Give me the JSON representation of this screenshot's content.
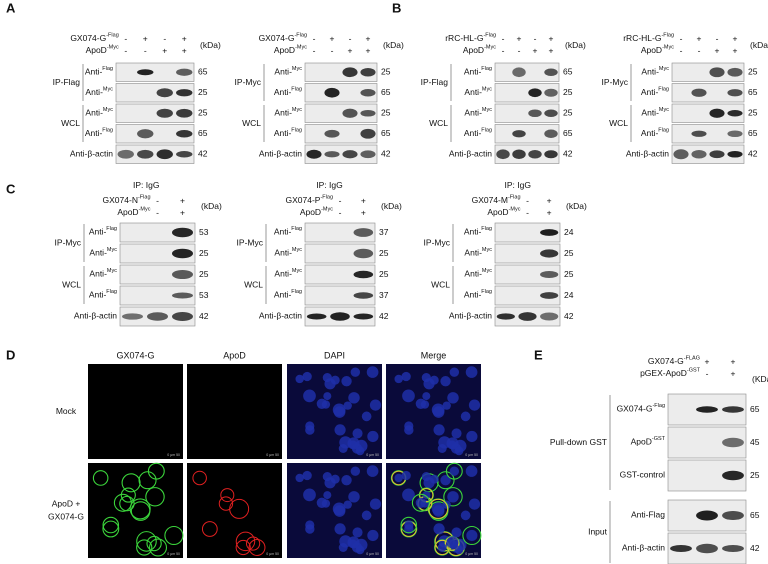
{
  "panels": [
    {
      "label": "A",
      "blots": [
        {
          "header": [
            {
              "name": "GX074-G",
              "sup": "-Flag",
              "signs": [
                "-",
                "+",
                "-",
                "+"
              ]
            },
            {
              "name": "ApoD",
              "sup": "-Myc",
              "signs": [
                "-",
                "-",
                "+",
                "+"
              ]
            }
          ],
          "unit": "(kDa)",
          "groups": [
            {
              "name": "IP-Flag",
              "rows": [
                {
                  "name": "Anti-",
                  "sup": "Flag",
                  "kda": 65
                },
                {
                  "name": "Anti-",
                  "sup": "Myc",
                  "kda": 25
                }
              ]
            },
            {
              "name": "WCL",
              "rows": [
                {
                  "name": "Anti-",
                  "sup": "Myc",
                  "kda": 25
                },
                {
                  "name": "Anti-",
                  "sup": "Flag",
                  "kda": 65
                }
              ]
            }
          ],
          "loading": {
            "name": "Anti-β-actin",
            "kda": 42
          }
        },
        {
          "header": [
            {
              "name": "GX074-G",
              "sup": "-Flag",
              "signs": [
                "-",
                "+",
                "-",
                "+"
              ]
            },
            {
              "name": "ApoD",
              "sup": "-Myc",
              "signs": [
                "-",
                "-",
                "+",
                "+"
              ]
            }
          ],
          "unit": "(kDa)",
          "groups": [
            {
              "name": "IP-Myc",
              "rows": [
                {
                  "name": "Anti-",
                  "sup": "Myc",
                  "kda": 25
                },
                {
                  "name": "Anti-",
                  "sup": "Flag",
                  "kda": 65
                }
              ]
            },
            {
              "name": "WCL",
              "rows": [
                {
                  "name": "Anti-",
                  "sup": "Myc",
                  "kda": 25
                },
                {
                  "name": "Anti-",
                  "sup": "Flag",
                  "kda": 65
                }
              ]
            }
          ],
          "loading": {
            "name": "Anti-β-actin",
            "kda": 42
          }
        }
      ]
    },
    {
      "label": "B",
      "blots": [
        {
          "header": [
            {
              "name": "rRC-HL-G",
              "sup": "-Flag",
              "signs": [
                "-",
                "+",
                "-",
                "+"
              ]
            },
            {
              "name": "ApoD",
              "sup": "-Myc",
              "signs": [
                "-",
                "-",
                "+",
                "+"
              ]
            }
          ],
          "unit": "(kDa)",
          "groups": [
            {
              "name": "IP-Flag",
              "rows": [
                {
                  "name": "Anti-",
                  "sup": "Flag",
                  "kda": 65
                },
                {
                  "name": "Anti-",
                  "sup": "Myc",
                  "kda": 25
                }
              ]
            },
            {
              "name": "WCL",
              "rows": [
                {
                  "name": "Anti-",
                  "sup": "Myc",
                  "kda": 25
                },
                {
                  "name": "Anti-",
                  "sup": "Flag",
                  "kda": 65
                }
              ]
            }
          ],
          "loading": {
            "name": "Anti-β-actin",
            "kda": 42
          }
        },
        {
          "header": [
            {
              "name": "rRC-HL-G",
              "sup": "-Flag",
              "signs": [
                "-",
                "+",
                "-",
                "+"
              ]
            },
            {
              "name": "ApoD",
              "sup": "-Myc",
              "signs": [
                "-",
                "-",
                "+",
                "+"
              ]
            }
          ],
          "unit": "(kDa)",
          "groups": [
            {
              "name": "IP-Myc",
              "rows": [
                {
                  "name": "Anti-",
                  "sup": "Myc",
                  "kda": 25
                },
                {
                  "name": "Anti-",
                  "sup": "Flag",
                  "kda": 65
                }
              ]
            },
            {
              "name": "WCL",
              "rows": [
                {
                  "name": "Anti-",
                  "sup": "Myc",
                  "kda": 25
                },
                {
                  "name": "Anti-",
                  "sup": "Flag",
                  "kda": 65
                }
              ]
            }
          ],
          "loading": {
            "name": "Anti-β-actin",
            "kda": 42
          }
        }
      ]
    },
    {
      "label": "C",
      "blots": [
        {
          "title": "IP: IgG",
          "header": [
            {
              "name": "GX074-N",
              "sup": "-Flag",
              "signs": [
                "-",
                "+"
              ]
            },
            {
              "name": "ApoD",
              "sup": "-Myc",
              "signs": [
                "-",
                "+"
              ]
            }
          ],
          "unit": "(kDa)",
          "groups": [
            {
              "name": "IP-Myc",
              "rows": [
                {
                  "name": "Anti-",
                  "sup": "Flag",
                  "kda": 53
                },
                {
                  "name": "Anti-",
                  "sup": "Myc",
                  "kda": 25
                }
              ]
            },
            {
              "name": "WCL",
              "rows": [
                {
                  "name": "Anti-",
                  "sup": "Myc",
                  "kda": 25
                },
                {
                  "name": "Anti-",
                  "sup": "Flag",
                  "kda": 53
                }
              ]
            }
          ],
          "loading": {
            "name": "Anti-β-actin",
            "kda": 42
          }
        },
        {
          "title": "IP: IgG",
          "header": [
            {
              "name": "GX074-P",
              "sup": "-Flag",
              "signs": [
                "-",
                "+"
              ]
            },
            {
              "name": "ApoD",
              "sup": "-Myc",
              "signs": [
                "-",
                "+"
              ]
            }
          ],
          "unit": "(kDa)",
          "groups": [
            {
              "name": "IP-Myc",
              "rows": [
                {
                  "name": "Anti-",
                  "sup": "Flag",
                  "kda": 37
                },
                {
                  "name": "Anti-",
                  "sup": "Myc",
                  "kda": 25
                }
              ]
            },
            {
              "name": "WCL",
              "rows": [
                {
                  "name": "Anti-",
                  "sup": "Myc",
                  "kda": 25
                },
                {
                  "name": "Anti-",
                  "sup": "Flag",
                  "kda": 37
                }
              ]
            }
          ],
          "loading": {
            "name": "Anti-β-actin",
            "kda": 42
          }
        },
        {
          "title": "IP: IgG",
          "header": [
            {
              "name": "GX074-M",
              "sup": "-Flag",
              "signs": [
                "-",
                "+"
              ]
            },
            {
              "name": "ApoD",
              "sup": "-Myc",
              "signs": [
                "-",
                "+"
              ]
            }
          ],
          "unit": "(kDa)",
          "groups": [
            {
              "name": "IP-Myc",
              "rows": [
                {
                  "name": "Anti-",
                  "sup": "Flag",
                  "kda": 24
                },
                {
                  "name": "Anti-",
                  "sup": "Myc",
                  "kda": 25
                }
              ]
            },
            {
              "name": "WCL",
              "rows": [
                {
                  "name": "Anti-",
                  "sup": "Myc",
                  "kda": 25
                },
                {
                  "name": "Anti-",
                  "sup": "Flag",
                  "kda": 24
                }
              ]
            }
          ],
          "loading": {
            "name": "Anti-β-actin",
            "kda": 42
          }
        }
      ]
    },
    {
      "label": "D",
      "columns": [
        "GX074-G",
        "ApoD",
        "DAPI",
        "Merge"
      ],
      "rows": [
        {
          "lines": [
            "Mock"
          ]
        },
        {
          "lines": [
            "ApoD +",
            "GX074-G"
          ]
        }
      ],
      "scale": "0   μm   50"
    },
    {
      "label": "E",
      "blots": [
        {
          "header": [
            {
              "name": "GX074-G",
              "sup": "-FLAG",
              "signs": [
                "+",
                "+"
              ]
            },
            {
              "name": "pGEX-ApoD",
              "sup": "-GST",
              "signs": [
                "-",
                "+"
              ]
            }
          ],
          "unit": "(KDa)",
          "groups": [
            {
              "name": "Pull-down GST",
              "rows": [
                {
                  "name": "GX074-G",
                  "sup": "-Flag",
                  "kda": 65
                },
                {
                  "name": "ApoD",
                  "sup": "-GST",
                  "kda": 45
                },
                {
                  "name": "GST-control",
                  "kda": 25
                }
              ]
            },
            {
              "name": "Input",
              "rows": [
                {
                  "name": "Anti-Flag",
                  "kda": 65
                },
                {
                  "name": "Anti-β-actin",
                  "kda": 42
                }
              ]
            }
          ]
        }
      ]
    }
  ]
}
